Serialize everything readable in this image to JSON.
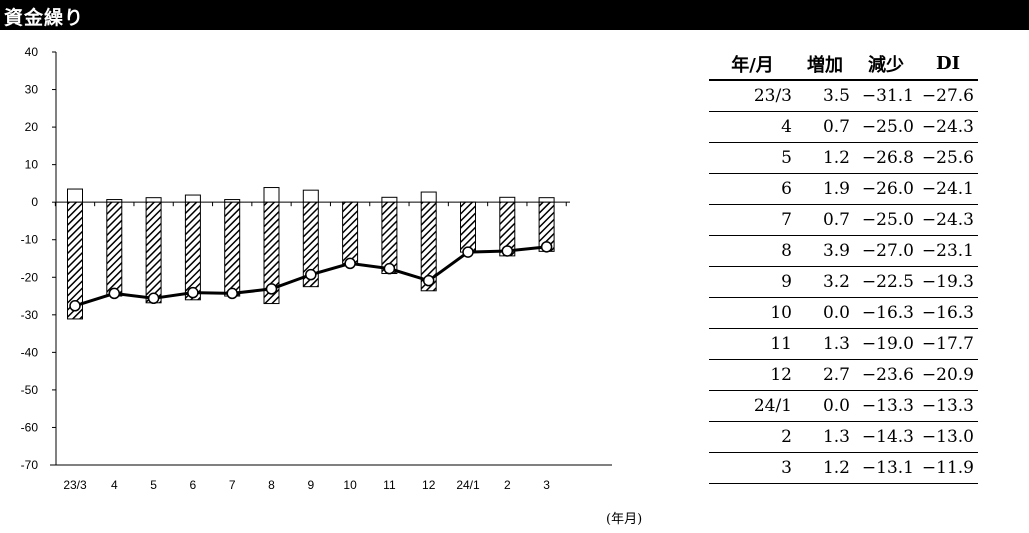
{
  "title": "資金繰り",
  "unit_label": "(年月)",
  "table": {
    "headers": [
      "年/月",
      "増加",
      "減少",
      "DI"
    ],
    "rows": [
      [
        "23/3",
        "3.5",
        "−31.1",
        "−27.6"
      ],
      [
        "4",
        "0.7",
        "−25.0",
        "−24.3"
      ],
      [
        "5",
        "1.2",
        "−26.8",
        "−25.6"
      ],
      [
        "6",
        "1.9",
        "−26.0",
        "−24.1"
      ],
      [
        "7",
        "0.7",
        "−25.0",
        "−24.3"
      ],
      [
        "8",
        "3.9",
        "−27.0",
        "−23.1"
      ],
      [
        "9",
        "3.2",
        "−22.5",
        "−19.3"
      ],
      [
        "10",
        "0.0",
        "−16.3",
        "−16.3"
      ],
      [
        "11",
        "1.3",
        "−19.0",
        "−17.7"
      ],
      [
        "12",
        "2.7",
        "−23.6",
        "−20.9"
      ],
      [
        "24/1",
        "0.0",
        "−13.3",
        "−13.3"
      ],
      [
        "2",
        "1.3",
        "−14.3",
        "−13.0"
      ],
      [
        "3",
        "1.2",
        "−13.1",
        "−11.9"
      ]
    ]
  },
  "chart_data": {
    "type": "bar",
    "categories": [
      "23/3",
      "4",
      "5",
      "6",
      "7",
      "8",
      "9",
      "10",
      "11",
      "12",
      "24/1",
      "2",
      "3"
    ],
    "series": [
      {
        "name": "増加",
        "type": "bar",
        "fill": "white",
        "values": [
          3.5,
          0.7,
          1.2,
          1.9,
          0.7,
          3.9,
          3.2,
          0.0,
          1.3,
          2.7,
          0.0,
          1.3,
          1.2
        ]
      },
      {
        "name": "減少",
        "type": "bar",
        "fill": "hatched",
        "values": [
          -31.1,
          -25.0,
          -26.8,
          -26.0,
          -25.0,
          -27.0,
          -22.5,
          -16.3,
          -19.0,
          -23.6,
          -13.3,
          -14.3,
          -13.1
        ]
      },
      {
        "name": "DI",
        "type": "line",
        "marker": "circle",
        "values": [
          -27.6,
          -24.3,
          -25.6,
          -24.1,
          -24.3,
          -23.1,
          -19.3,
          -16.3,
          -17.7,
          -20.9,
          -13.3,
          -13.0,
          -11.9
        ]
      }
    ],
    "yticks": [
      40,
      30,
      20,
      10,
      0,
      -10,
      -20,
      -30,
      -40,
      -50,
      -60,
      -70
    ],
    "ylim": [
      -70,
      40
    ],
    "grid": false,
    "legend": "none"
  }
}
